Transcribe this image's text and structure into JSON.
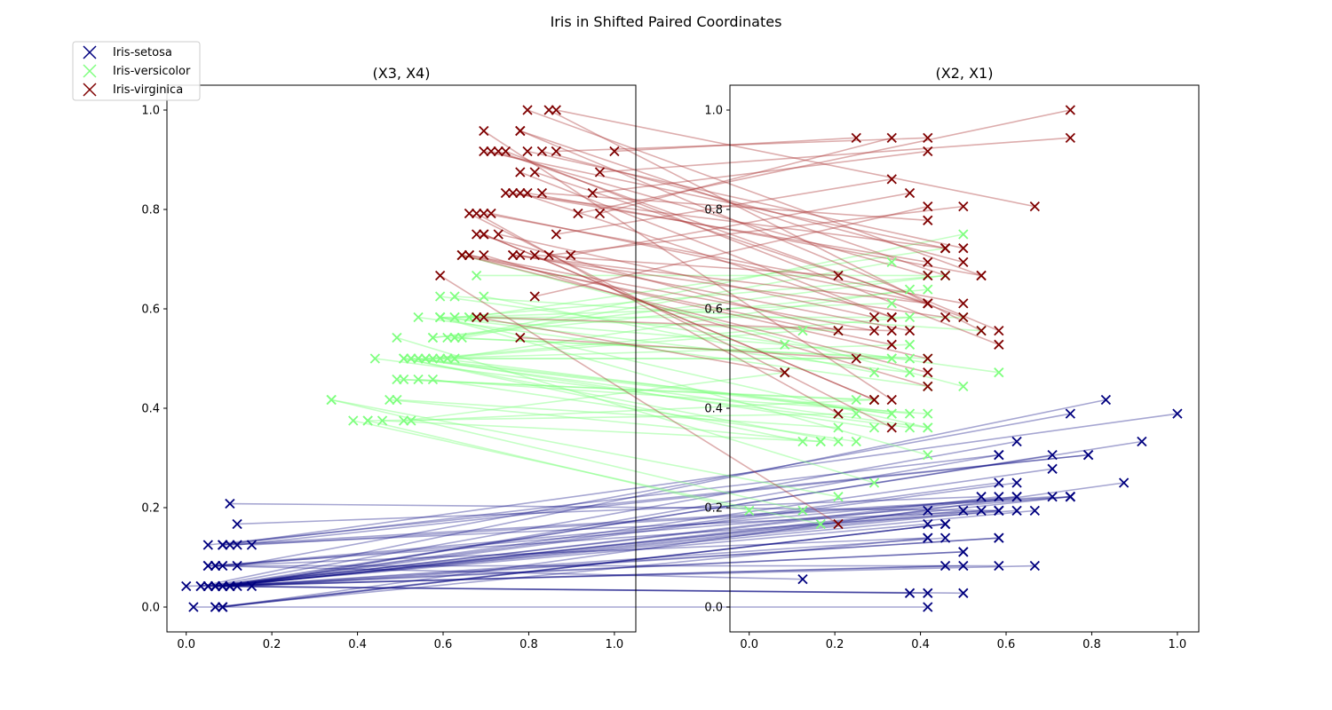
{
  "chart_data": {
    "type": "scatter",
    "title": "Iris in Shifted Paired Coordinates",
    "panels": [
      {
        "title": "(X3, X4)",
        "xlim": [
          -0.045,
          1.05
        ],
        "ylim": [
          -0.05,
          1.05
        ],
        "xticks": [
          "0.0",
          "0.2",
          "0.4",
          "0.6",
          "0.8",
          "1.0"
        ],
        "yticks": [
          "0.0",
          "0.2",
          "0.4",
          "0.6",
          "0.8",
          "1.0"
        ]
      },
      {
        "title": "(X2, X1)",
        "xlim": [
          -0.045,
          1.05
        ],
        "ylim": [
          -0.05,
          1.05
        ],
        "xticks": [
          "0.0",
          "0.2",
          "0.4",
          "0.6",
          "0.8",
          "1.0"
        ],
        "yticks": [
          "0.0",
          "0.2",
          "0.4",
          "0.6",
          "0.8",
          "1.0"
        ]
      }
    ],
    "legend": {
      "placement": "top-left"
    },
    "series": [
      {
        "name": "Iris-setosa",
        "color": "#00007f",
        "line_color": "#00007f",
        "line_alpha": 0.35,
        "points": [
          [
            0.068,
            0.042,
            0.625,
            0.222
          ],
          [
            0.068,
            0.042,
            0.417,
            0.167
          ],
          [
            0.051,
            0.042,
            0.5,
            0.111
          ],
          [
            0.085,
            0.042,
            0.458,
            0.083
          ],
          [
            0.068,
            0.042,
            0.667,
            0.194
          ],
          [
            0.119,
            0.125,
            0.792,
            0.306
          ],
          [
            0.068,
            0.083,
            0.583,
            0.083
          ],
          [
            0.085,
            0.042,
            0.583,
            0.194
          ],
          [
            0.068,
            0.042,
            0.375,
            0.028
          ],
          [
            0.085,
            0.0,
            0.458,
            0.167
          ],
          [
            0.085,
            0.042,
            0.708,
            0.306
          ],
          [
            0.102,
            0.042,
            0.583,
            0.139
          ],
          [
            0.068,
            0.0,
            0.417,
            0.139
          ],
          [
            0.017,
            0.0,
            0.417,
            0.0
          ],
          [
            0.034,
            0.042,
            0.833,
            0.417
          ],
          [
            0.085,
            0.125,
            1.0,
            0.389
          ],
          [
            0.051,
            0.125,
            0.792,
            0.306
          ],
          [
            0.068,
            0.083,
            0.625,
            0.222
          ],
          [
            0.119,
            0.083,
            0.75,
            0.389
          ],
          [
            0.085,
            0.083,
            0.75,
            0.222
          ],
          [
            0.119,
            0.042,
            0.583,
            0.306
          ],
          [
            0.085,
            0.125,
            0.708,
            0.222
          ],
          [
            0.0,
            0.042,
            0.667,
            0.083
          ],
          [
            0.119,
            0.167,
            0.542,
            0.222
          ],
          [
            0.153,
            0.042,
            0.583,
            0.139
          ],
          [
            0.102,
            0.042,
            0.417,
            0.194
          ],
          [
            0.102,
            0.125,
            0.583,
            0.194
          ],
          [
            0.085,
            0.042,
            0.625,
            0.25
          ],
          [
            0.068,
            0.042,
            0.583,
            0.25
          ],
          [
            0.102,
            0.042,
            0.5,
            0.111
          ],
          [
            0.102,
            0.042,
            0.458,
            0.139
          ],
          [
            0.085,
            0.125,
            0.583,
            0.306
          ],
          [
            0.085,
            0.0,
            0.875,
            0.25
          ],
          [
            0.068,
            0.042,
            0.917,
            0.333
          ],
          [
            0.085,
            0.0,
            0.458,
            0.167
          ],
          [
            0.034,
            0.042,
            0.5,
            0.194
          ],
          [
            0.051,
            0.042,
            0.625,
            0.333
          ],
          [
            0.068,
            0.0,
            0.458,
            0.167
          ],
          [
            0.051,
            0.042,
            0.417,
            0.028
          ],
          [
            0.085,
            0.042,
            0.583,
            0.222
          ],
          [
            0.051,
            0.083,
            0.625,
            0.194
          ],
          [
            0.051,
            0.083,
            0.125,
            0.056
          ],
          [
            0.051,
            0.042,
            0.5,
            0.028
          ],
          [
            0.102,
            0.208,
            0.583,
            0.194
          ],
          [
            0.153,
            0.125,
            0.75,
            0.222
          ],
          [
            0.068,
            0.083,
            0.417,
            0.139
          ],
          [
            0.102,
            0.042,
            0.75,
            0.222
          ],
          [
            0.068,
            0.042,
            0.5,
            0.083
          ],
          [
            0.085,
            0.042,
            0.708,
            0.278
          ],
          [
            0.068,
            0.042,
            0.542,
            0.194
          ]
        ]
      },
      {
        "name": "Iris-versicolor",
        "color": "#7fff7f",
        "line_color": "#7fff7f",
        "line_alpha": 0.45,
        "points": [
          [
            0.627,
            0.542,
            0.5,
            0.75
          ],
          [
            0.593,
            0.583,
            0.5,
            0.583
          ],
          [
            0.661,
            0.583,
            0.458,
            0.722
          ],
          [
            0.508,
            0.5,
            0.125,
            0.333
          ],
          [
            0.627,
            0.583,
            0.333,
            0.611
          ],
          [
            0.593,
            0.5,
            0.333,
            0.389
          ],
          [
            0.627,
            0.625,
            0.542,
            0.556
          ],
          [
            0.39,
            0.375,
            0.167,
            0.167
          ],
          [
            0.61,
            0.5,
            0.375,
            0.639
          ],
          [
            0.492,
            0.542,
            0.292,
            0.25
          ],
          [
            0.424,
            0.375,
            0.0,
            0.194
          ],
          [
            0.542,
            0.583,
            0.417,
            0.444
          ],
          [
            0.508,
            0.375,
            0.083,
            0.472
          ],
          [
            0.627,
            0.542,
            0.375,
            0.5
          ],
          [
            0.441,
            0.5,
            0.375,
            0.361
          ],
          [
            0.576,
            0.542,
            0.458,
            0.667
          ],
          [
            0.593,
            0.583,
            0.417,
            0.361
          ],
          [
            0.525,
            0.375,
            0.292,
            0.417
          ],
          [
            0.593,
            0.583,
            0.083,
            0.528
          ],
          [
            0.492,
            0.417,
            0.208,
            0.361
          ],
          [
            0.644,
            0.708,
            0.5,
            0.444
          ],
          [
            0.508,
            0.5,
            0.333,
            0.5
          ],
          [
            0.661,
            0.583,
            0.208,
            0.556
          ],
          [
            0.627,
            0.5,
            0.333,
            0.5
          ],
          [
            0.559,
            0.5,
            0.375,
            0.583
          ],
          [
            0.576,
            0.542,
            0.417,
            0.639
          ],
          [
            0.644,
            0.542,
            0.333,
            0.694
          ],
          [
            0.678,
            0.667,
            0.417,
            0.667
          ],
          [
            0.593,
            0.583,
            0.375,
            0.472
          ],
          [
            0.424,
            0.375,
            0.25,
            0.389
          ],
          [
            0.475,
            0.417,
            0.167,
            0.333
          ],
          [
            0.458,
            0.375,
            0.167,
            0.333
          ],
          [
            0.492,
            0.458,
            0.292,
            0.417
          ],
          [
            0.695,
            0.625,
            0.292,
            0.472
          ],
          [
            0.593,
            0.583,
            0.417,
            0.306
          ],
          [
            0.593,
            0.625,
            0.583,
            0.472
          ],
          [
            0.627,
            0.583,
            0.458,
            0.667
          ],
          [
            0.576,
            0.5,
            0.125,
            0.556
          ],
          [
            0.525,
            0.5,
            0.417,
            0.361
          ],
          [
            0.508,
            0.5,
            0.208,
            0.333
          ],
          [
            0.576,
            0.458,
            0.25,
            0.333
          ],
          [
            0.61,
            0.542,
            0.417,
            0.5
          ],
          [
            0.508,
            0.458,
            0.25,
            0.417
          ],
          [
            0.339,
            0.417,
            0.125,
            0.194
          ],
          [
            0.542,
            0.5,
            0.292,
            0.361
          ],
          [
            0.542,
            0.458,
            0.417,
            0.389
          ],
          [
            0.542,
            0.5,
            0.375,
            0.389
          ],
          [
            0.559,
            0.5,
            0.375,
            0.528
          ],
          [
            0.339,
            0.417,
            0.208,
            0.222
          ],
          [
            0.525,
            0.5,
            0.333,
            0.389
          ]
        ]
      },
      {
        "name": "Iris-virginica",
        "color": "#7f0000",
        "line_color": "#aa3333",
        "line_alpha": 0.4,
        "points": [
          [
            0.847,
            1.0,
            0.542,
            0.556
          ],
          [
            0.695,
            0.75,
            0.292,
            0.417
          ],
          [
            0.831,
            0.833,
            0.417,
            0.778
          ],
          [
            0.78,
            0.708,
            0.375,
            0.556
          ],
          [
            0.814,
            0.875,
            0.417,
            0.611
          ],
          [
            0.949,
            0.833,
            0.417,
            0.917
          ],
          [
            0.593,
            0.667,
            0.208,
            0.167
          ],
          [
            0.898,
            0.708,
            0.375,
            0.833
          ],
          [
            0.814,
            0.708,
            0.208,
            0.667
          ],
          [
            0.864,
            1.0,
            0.667,
            0.806
          ],
          [
            0.695,
            0.792,
            0.5,
            0.611
          ],
          [
            0.729,
            0.75,
            0.292,
            0.583
          ],
          [
            0.763,
            0.833,
            0.417,
            0.694
          ],
          [
            0.678,
            0.792,
            0.208,
            0.389
          ],
          [
            0.695,
            0.958,
            0.333,
            0.417
          ],
          [
            0.729,
            0.917,
            0.5,
            0.583
          ],
          [
            0.763,
            0.708,
            0.417,
            0.611
          ],
          [
            0.966,
            0.875,
            0.75,
            0.944
          ],
          [
            1.0,
            0.917,
            0.25,
            0.944
          ],
          [
            0.678,
            0.583,
            0.083,
            0.472
          ],
          [
            0.797,
            0.917,
            0.5,
            0.722
          ],
          [
            0.661,
            0.792,
            0.333,
            0.361
          ],
          [
            0.966,
            0.792,
            0.333,
            0.944
          ],
          [
            0.661,
            0.708,
            0.292,
            0.556
          ],
          [
            0.797,
            0.833,
            0.542,
            0.667
          ],
          [
            0.847,
            0.708,
            0.5,
            0.806
          ],
          [
            0.644,
            0.708,
            0.333,
            0.528
          ],
          [
            0.661,
            0.708,
            0.417,
            0.5
          ],
          [
            0.78,
            0.833,
            0.333,
            0.583
          ],
          [
            0.814,
            0.625,
            0.417,
            0.806
          ],
          [
            0.864,
            0.75,
            0.333,
            0.861
          ],
          [
            0.915,
            0.792,
            0.75,
            1.0
          ],
          [
            0.78,
            0.875,
            0.333,
            0.583
          ],
          [
            0.695,
            0.583,
            0.333,
            0.556
          ],
          [
            0.78,
            0.542,
            0.25,
            0.5
          ],
          [
            0.864,
            0.917,
            0.417,
            0.944
          ],
          [
            0.78,
            0.958,
            0.583,
            0.556
          ],
          [
            0.763,
            0.708,
            0.458,
            0.583
          ],
          [
            0.644,
            0.708,
            0.417,
            0.472
          ],
          [
            0.746,
            0.833,
            0.458,
            0.722
          ],
          [
            0.78,
            0.958,
            0.458,
            0.667
          ],
          [
            0.695,
            0.917,
            0.458,
            0.722
          ],
          [
            0.695,
            0.75,
            0.292,
            0.417
          ],
          [
            0.831,
            0.917,
            0.5,
            0.694
          ],
          [
            0.797,
            1.0,
            0.542,
            0.667
          ],
          [
            0.712,
            0.917,
            0.417,
            0.667
          ],
          [
            0.678,
            0.75,
            0.208,
            0.556
          ],
          [
            0.712,
            0.792,
            0.417,
            0.611
          ],
          [
            0.746,
            0.917,
            0.583,
            0.528
          ],
          [
            0.695,
            0.708,
            0.417,
            0.444
          ]
        ]
      }
    ]
  }
}
